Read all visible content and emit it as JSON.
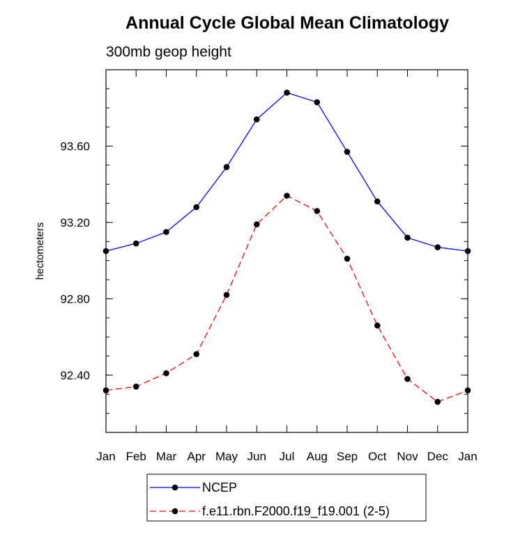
{
  "chart_data": {
    "type": "line",
    "title": "Annual Cycle Global Mean Climatology",
    "subtitle": "300mb geop height",
    "ylabel": "hectometers",
    "xlabel": "",
    "categories": [
      "Jan",
      "Feb",
      "Mar",
      "Apr",
      "May",
      "Jun",
      "Jul",
      "Aug",
      "Sep",
      "Oct",
      "Nov",
      "Dec",
      "Jan"
    ],
    "ylim": [
      92.1,
      94.0
    ],
    "yticks": [
      92.4,
      92.8,
      93.2,
      93.6
    ],
    "ytick_labels": [
      "92.40",
      "92.80",
      "93.20",
      "93.60"
    ],
    "series": [
      {
        "name": "NCEP",
        "color": "#0000ff",
        "dash": "solid",
        "values": [
          93.05,
          93.09,
          93.15,
          93.28,
          93.49,
          93.74,
          93.88,
          93.83,
          93.57,
          93.31,
          93.12,
          93.07,
          93.05
        ]
      },
      {
        "name": "f.e11.rbn.F2000.f19_f19.001 (2-5)",
        "color": "#ff0000",
        "dash": "dashed",
        "values": [
          92.32,
          92.34,
          92.41,
          92.51,
          92.82,
          93.19,
          93.34,
          93.26,
          93.01,
          92.66,
          92.38,
          92.26,
          92.32
        ]
      }
    ],
    "legend_position": "bottom-center",
    "grid": false
  }
}
